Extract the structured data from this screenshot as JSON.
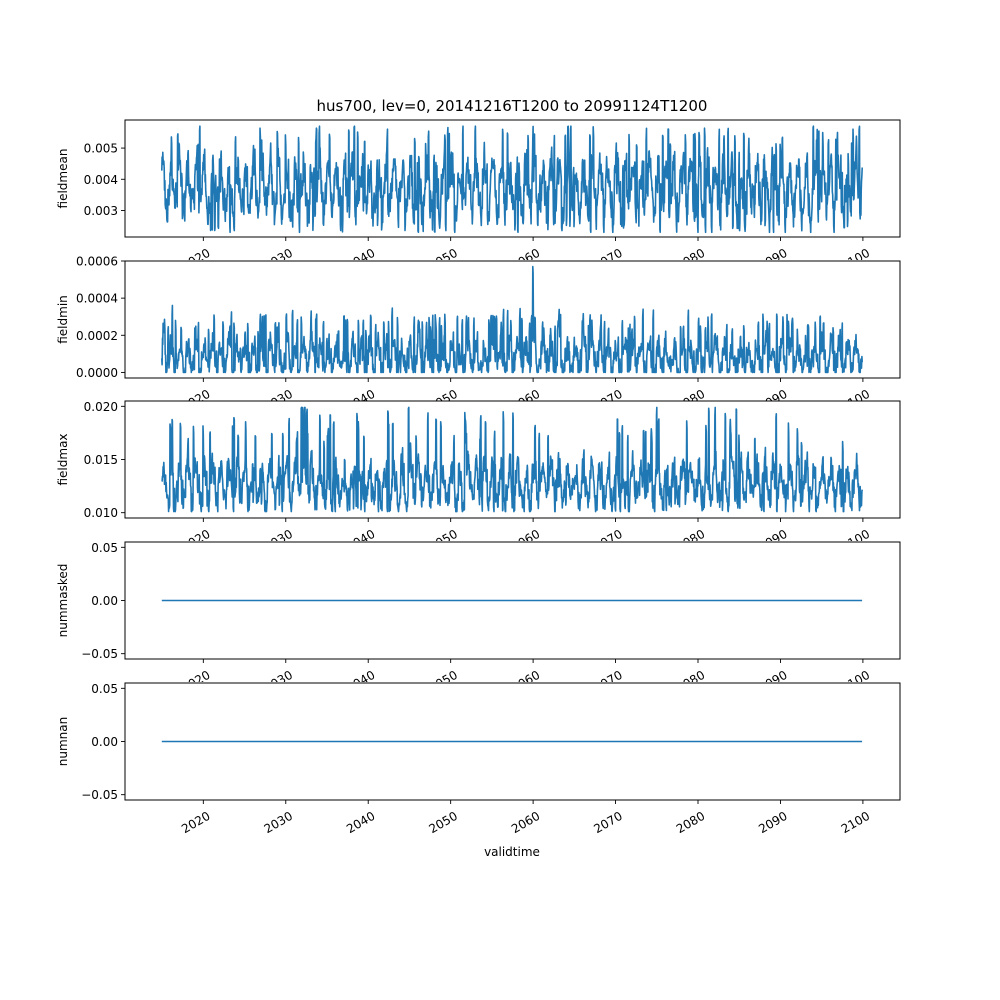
{
  "figure": {
    "title": "hus700, lev=0, 20141216T1200 to 20991124T1200",
    "xlabel": "validtime"
  },
  "chart_data": [
    {
      "type": "line",
      "ylabel": "fieldmean",
      "xlim": [
        2010.5,
        2104.5
      ],
      "ylim": [
        0.00215,
        0.0059
      ],
      "yticks": [
        0.003,
        0.004,
        0.005
      ],
      "ytick_labels": [
        "0.003",
        "0.004",
        "0.005"
      ],
      "xticks": [
        2020,
        2030,
        2040,
        2050,
        2060,
        2070,
        2080,
        2090,
        2100
      ],
      "xtick_labels": [
        "2020",
        "2030",
        "2040",
        "2050",
        "2060",
        "2070",
        "2080",
        "2090",
        "2100"
      ],
      "series": [
        {
          "color": "#1f77b4",
          "seasonal": true,
          "x_range": [
            2014.96,
            2099.9
          ],
          "mean": 0.0037,
          "typical_range": [
            0.0026,
            0.0051
          ],
          "min": 0.0023,
          "max": 0.0057
        }
      ]
    },
    {
      "type": "line",
      "ylabel": "fieldmin",
      "xlim": [
        2010.5,
        2104.5
      ],
      "ylim": [
        -3e-05,
        0.0006
      ],
      "yticks": [
        0.0,
        0.0002,
        0.0004,
        0.0006
      ],
      "ytick_labels": [
        "0.0000",
        "0.0002",
        "0.0004",
        "0.0006"
      ],
      "xticks": [
        2020,
        2030,
        2040,
        2050,
        2060,
        2070,
        2080,
        2090,
        2100
      ],
      "xtick_labels": [
        "2020",
        "2030",
        "2040",
        "2050",
        "2060",
        "2070",
        "2080",
        "2090",
        "2100"
      ],
      "series": [
        {
          "color": "#1f77b4",
          "seasonal": true,
          "x_range": [
            2014.96,
            2099.9
          ],
          "mean": 8e-05,
          "typical_range": [
            0.0,
            0.0003
          ],
          "min": 0.0,
          "max": 0.00057
        }
      ]
    },
    {
      "type": "line",
      "ylabel": "fieldmax",
      "xlim": [
        2010.5,
        2104.5
      ],
      "ylim": [
        0.0095,
        0.0205
      ],
      "yticks": [
        0.01,
        0.015,
        0.02
      ],
      "ytick_labels": [
        "0.010",
        "0.015",
        "0.020"
      ],
      "xticks": [
        2020,
        2030,
        2040,
        2050,
        2060,
        2070,
        2080,
        2090,
        2100
      ],
      "xtick_labels": [
        "2020",
        "2030",
        "2040",
        "2050",
        "2060",
        "2070",
        "2080",
        "2090",
        "2100"
      ],
      "series": [
        {
          "color": "#1f77b4",
          "seasonal": true,
          "x_range": [
            2014.96,
            2099.9
          ],
          "mean": 0.0127,
          "typical_range": [
            0.011,
            0.0165
          ],
          "min": 0.0101,
          "max": 0.0199
        }
      ]
    },
    {
      "type": "line",
      "ylabel": "nummasked",
      "xlim": [
        2010.5,
        2104.5
      ],
      "ylim": [
        -0.055,
        0.055
      ],
      "yticks": [
        -0.05,
        0.0,
        0.05
      ],
      "ytick_labels": [
        "−0.05",
        "0.00",
        "0.05"
      ],
      "xticks": [
        2020,
        2030,
        2040,
        2050,
        2060,
        2070,
        2080,
        2090,
        2100
      ],
      "xtick_labels": [
        "2020",
        "2030",
        "2040",
        "2050",
        "2060",
        "2070",
        "2080",
        "2090",
        "2100"
      ],
      "series": [
        {
          "color": "#1f77b4",
          "x": [
            2014.96,
            2099.9
          ],
          "y": [
            0.0,
            0.0
          ]
        }
      ]
    },
    {
      "type": "line",
      "ylabel": "numnan",
      "xlim": [
        2010.5,
        2104.5
      ],
      "ylim": [
        -0.055,
        0.055
      ],
      "yticks": [
        -0.05,
        0.0,
        0.05
      ],
      "ytick_labels": [
        "−0.05",
        "0.00",
        "0.05"
      ],
      "xticks": [
        2020,
        2030,
        2040,
        2050,
        2060,
        2070,
        2080,
        2090,
        2100
      ],
      "xtick_labels": [
        "2020",
        "2030",
        "2040",
        "2050",
        "2060",
        "2070",
        "2080",
        "2090",
        "2100"
      ],
      "series": [
        {
          "color": "#1f77b4",
          "x": [
            2014.96,
            2099.9
          ],
          "y": [
            0.0,
            0.0
          ]
        }
      ]
    }
  ]
}
